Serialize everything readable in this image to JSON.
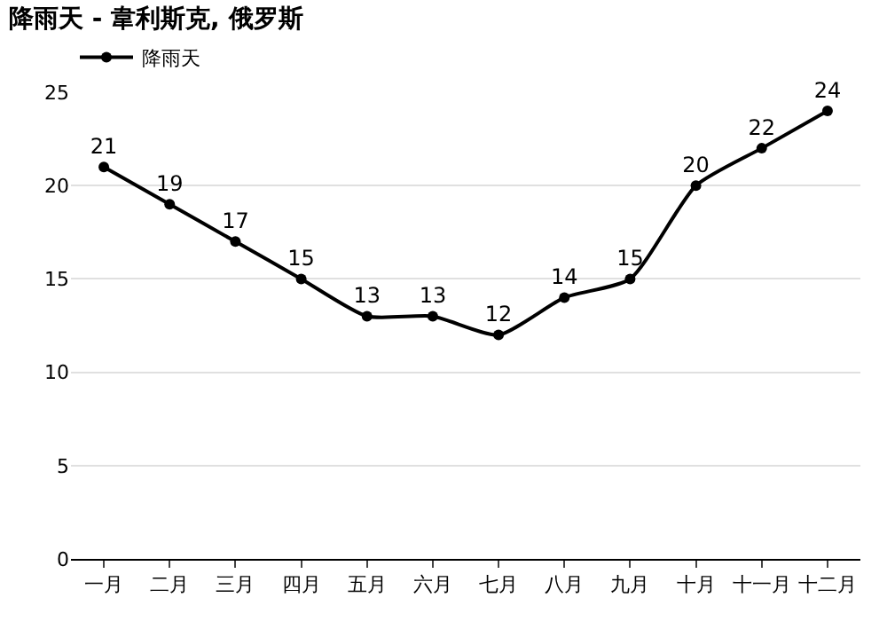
{
  "chart_data": {
    "type": "line",
    "title": "降雨天 - 韋利斯克, 俄罗斯",
    "categories": [
      "一月",
      "二月",
      "三月",
      "四月",
      "五月",
      "六月",
      "七月",
      "八月",
      "九月",
      "十月",
      "十一月",
      "十二月"
    ],
    "series": [
      {
        "name": "降雨天",
        "color": "#000000",
        "values": [
          21,
          19,
          17,
          15,
          13,
          13,
          12,
          14,
          15,
          20,
          22,
          24
        ]
      }
    ],
    "ylim": [
      0,
      25
    ],
    "yticks": [
      0,
      5,
      10,
      15,
      20,
      25
    ],
    "grid": "y",
    "legend": "top left",
    "marker": "circle",
    "line_style": "solid",
    "data_labels": true
  }
}
